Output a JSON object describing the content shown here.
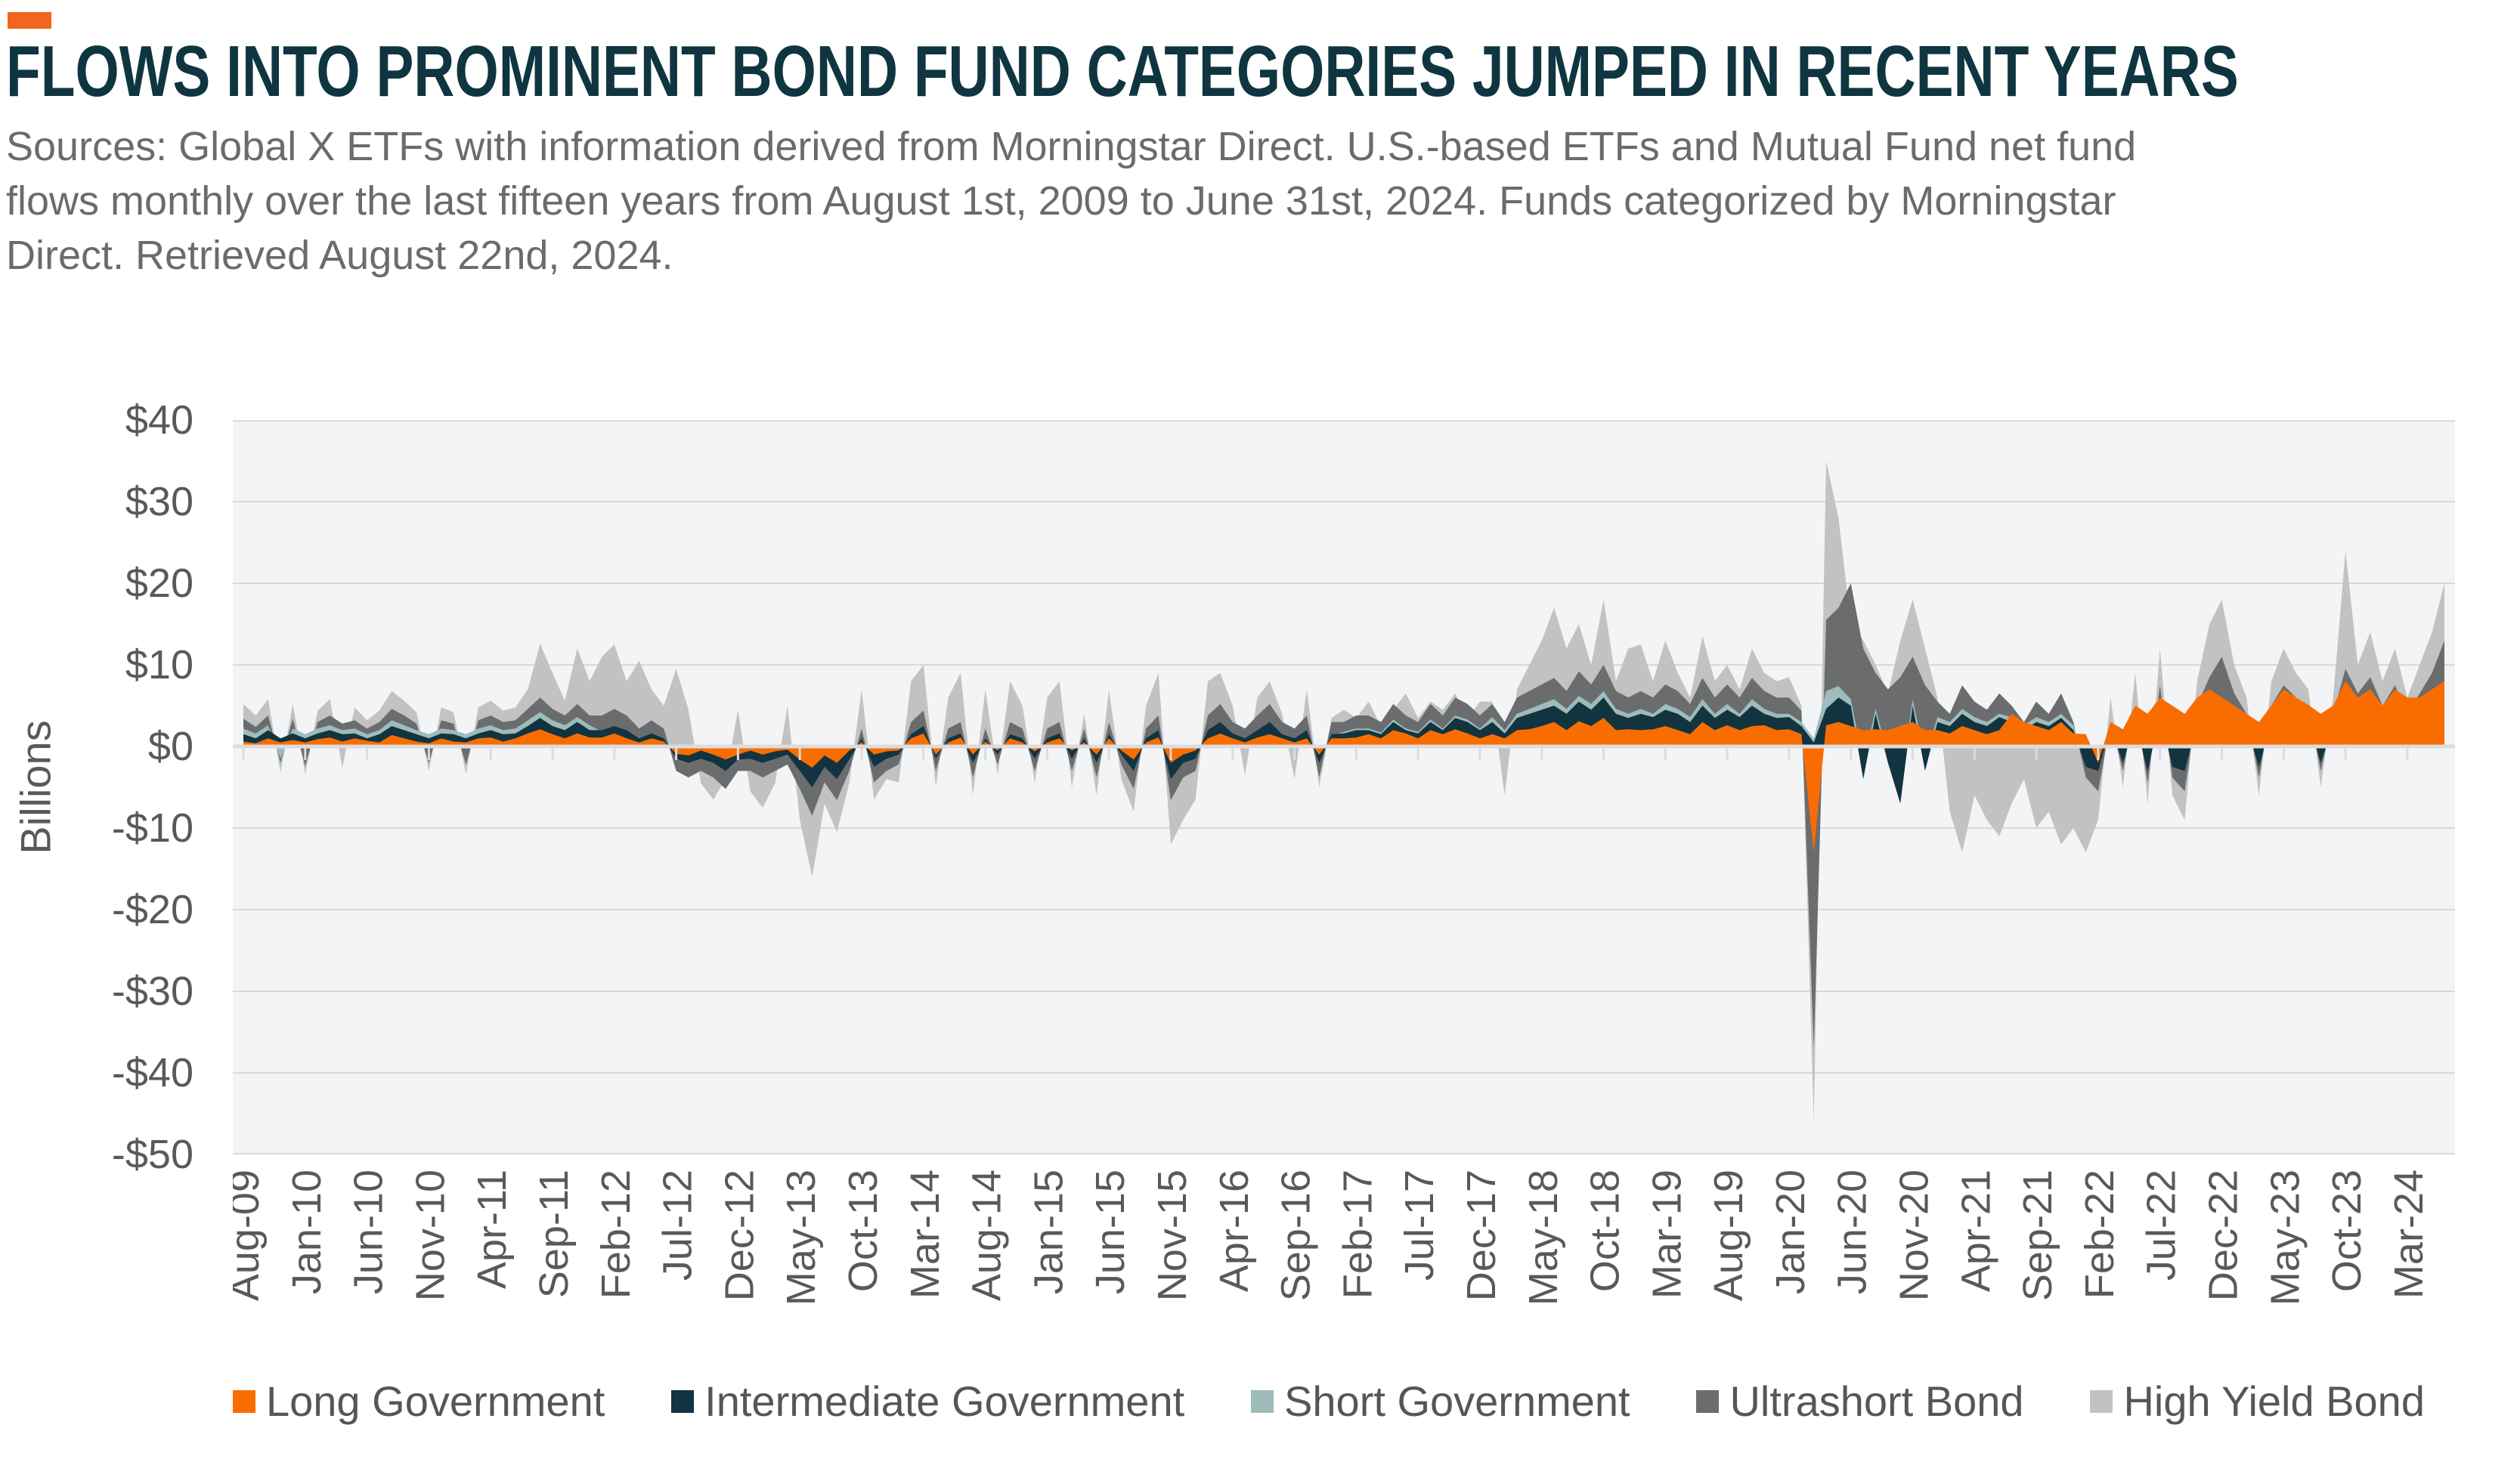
{
  "accent_color": "#F3641E",
  "header": {
    "title": "FLOWS INTO PROMINENT BOND FUND CATEGORIES JUMPED IN RECENT YEARS",
    "source_lines": [
      "Sources: Global X ETFs with information derived from Morningstar Direct. U.S.-based ETFs and Mutual Fund net fund",
      "flows monthly over the last fifteen years from August 1st, 2009 to June 31st, 2024. Funds categorized by Morningstar",
      "Direct. Retrieved August 22nd, 2024."
    ]
  },
  "chart_data": {
    "type": "area",
    "overlap": true,
    "title": "",
    "xlabel": "",
    "ylabel": "Billions",
    "ylim": [
      -50,
      40
    ],
    "y_tick_step": 10,
    "y_ticks": [
      "$40",
      "$30",
      "$20",
      "$10",
      "$0",
      "-$10",
      "-$20",
      "-$30",
      "-$40",
      "-$50"
    ],
    "grid": true,
    "legend_position": "bottom",
    "points": 179,
    "x_start": "Aug-2009",
    "x_end": "Jun-2024",
    "x_tick_every_months": 5,
    "x_tick_labels": [
      "Aug-09",
      "Jan-10",
      "Jun-10",
      "Nov-10",
      "Apr-11",
      "Sep-11",
      "Feb-12",
      "Jul-12",
      "Dec-12",
      "May-13",
      "Oct-13",
      "Mar-14",
      "Aug-14",
      "Jan-15",
      "Jun-15",
      "Nov-15",
      "Apr-16",
      "Sep-16",
      "Feb-17",
      "Jul-17",
      "Dec-17",
      "May-18",
      "Oct-18",
      "Mar-19",
      "Aug-19",
      "Jan-20",
      "Jun-20",
      "Nov-20",
      "Apr-21",
      "Sep-21",
      "Feb-22",
      "Jul-22",
      "Dec-22",
      "May-23",
      "Oct-23",
      "Mar-24"
    ],
    "plot_bg": "#F3F4F6",
    "grid_color": "#D8D8DA",
    "zero_line_color": "#DCDCDE",
    "axis_text_color": "#58595B",
    "series": [
      {
        "name": "Long Government",
        "color": "#F96D00",
        "values": [
          0.6,
          0.4,
          1.0,
          0.5,
          0.8,
          0.5,
          0.9,
          1.1,
          0.6,
          1.0,
          0.7,
          0.5,
          1.4,
          1.0,
          0.6,
          0.4,
          1.0,
          0.6,
          0.5,
          1.0,
          1.1,
          0.6,
          1.0,
          1.6,
          2.1,
          1.5,
          1.0,
          1.6,
          1.1,
          1.1,
          1.6,
          1.0,
          0.5,
          1.0,
          0.6,
          -0.9,
          -1.1,
          -0.5,
          -1.0,
          -1.6,
          -1.0,
          -0.5,
          -1.0,
          -0.6,
          -0.4,
          -1.6,
          -2.6,
          -1.1,
          -2.0,
          -0.5,
          0.5,
          -1.0,
          -0.6,
          -0.5,
          1.0,
          1.6,
          -1.0,
          0.5,
          1.1,
          -1.0,
          0.6,
          -0.5,
          1.0,
          0.5,
          -0.6,
          0.5,
          1.0,
          -0.5,
          0.5,
          -1.0,
          1.0,
          -0.5,
          -1.6,
          0.5,
          1.1,
          -2.0,
          -1.0,
          -0.5,
          1.0,
          1.6,
          1.0,
          0.5,
          1.1,
          1.5,
          1.0,
          0.5,
          1.0,
          -1.0,
          1.0,
          1.0,
          1.1,
          1.5,
          1.0,
          2.0,
          1.6,
          1.0,
          2.0,
          1.5,
          2.1,
          1.6,
          1.0,
          1.5,
          1.0,
          2.0,
          2.1,
          2.5,
          3.0,
          2.0,
          3.1,
          2.5,
          3.5,
          2.0,
          2.1,
          2.0,
          2.1,
          2.5,
          2.0,
          1.5,
          3.0,
          2.0,
          2.6,
          2.0,
          2.5,
          2.6,
          2.0,
          2.1,
          1.5,
          -13.0,
          2.6,
          3.0,
          2.5,
          2.0,
          2.1,
          2.0,
          2.5,
          3.0,
          2.0,
          2.0,
          1.6,
          2.5,
          2.0,
          1.5,
          2.0,
          4.0,
          3.0,
          2.5,
          2.0,
          3.0,
          1.6,
          1.5,
          -2.0,
          3.0,
          2.1,
          5.0,
          4.0,
          6.0,
          5.0,
          4.0,
          6.0,
          7.0,
          6.0,
          5.0,
          4.0,
          3.0,
          5.0,
          7.0,
          6.0,
          5.1,
          4.0,
          5.0,
          8.0,
          6.0,
          7.0,
          5.0,
          7.0,
          6.0,
          6.0,
          7.0,
          8.0
        ]
      },
      {
        "name": "Intermediate Government",
        "color": "#113440",
        "values": [
          1.5,
          1.0,
          2.0,
          1.0,
          1.6,
          1.0,
          1.6,
          2.0,
          1.5,
          1.6,
          1.0,
          1.5,
          2.5,
          2.0,
          1.5,
          1.0,
          1.6,
          1.5,
          1.0,
          1.6,
          2.0,
          1.5,
          1.6,
          2.5,
          3.5,
          2.5,
          2.0,
          3.0,
          2.0,
          2.0,
          2.5,
          2.0,
          1.0,
          1.6,
          1.0,
          -1.5,
          -2.0,
          -1.5,
          -2.0,
          -3.0,
          -1.6,
          -1.5,
          -2.0,
          -1.5,
          -1.0,
          -3.0,
          -5.0,
          -2.5,
          -4.0,
          -1.6,
          1.0,
          -2.5,
          -1.5,
          -1.0,
          1.5,
          2.5,
          -1.5,
          1.0,
          1.6,
          -2.0,
          1.0,
          -1.0,
          1.5,
          1.0,
          -1.5,
          1.0,
          1.6,
          -1.5,
          1.0,
          -2.0,
          1.5,
          -1.0,
          -3.0,
          1.0,
          2.0,
          -4.0,
          -2.0,
          -1.5,
          2.0,
          3.0,
          1.6,
          1.0,
          2.0,
          3.0,
          1.5,
          1.0,
          2.0,
          -2.0,
          1.5,
          1.6,
          2.0,
          2.0,
          1.5,
          3.0,
          2.0,
          1.6,
          3.0,
          2.0,
          3.5,
          3.0,
          2.0,
          3.0,
          1.6,
          3.5,
          4.0,
          4.5,
          5.0,
          4.0,
          5.5,
          4.5,
          6.0,
          4.0,
          3.5,
          4.0,
          3.6,
          4.5,
          4.0,
          3.0,
          5.0,
          3.5,
          4.5,
          3.6,
          5.0,
          4.0,
          3.5,
          3.6,
          2.5,
          0.5,
          4.6,
          6.0,
          5.0,
          -4.0,
          4.0,
          -2.0,
          -7.0,
          5.0,
          -3.0,
          3.0,
          2.5,
          4.0,
          3.0,
          2.5,
          3.6,
          3.0,
          2.0,
          3.0,
          2.5,
          3.5,
          2.0,
          -2.5,
          -3.0,
          2.5,
          -2.0,
          3.0,
          -3.0,
          4.0,
          -2.5,
          -3.0,
          3.0,
          4.5,
          5.0,
          3.5,
          2.6,
          -2.5,
          3.0,
          4.0,
          3.5,
          3.0,
          -2.0,
          2.5,
          5.0,
          3.5,
          4.5,
          3.0,
          4.0,
          2.5,
          3.6,
          4.5,
          7.0
        ]
      },
      {
        "name": "Short Government",
        "color": "#9DBCBA",
        "values": [
          2.2,
          1.6,
          2.6,
          -1.5,
          2.2,
          1.5,
          2.2,
          2.6,
          2.0,
          2.2,
          1.5,
          2.0,
          3.2,
          2.6,
          2.0,
          1.5,
          2.2,
          2.0,
          1.5,
          2.2,
          2.6,
          2.0,
          2.2,
          3.2,
          4.2,
          3.2,
          2.6,
          3.6,
          2.6,
          1.8,
          2.2,
          1.8,
          0.9,
          1.4,
          0.9,
          -1.3,
          -1.8,
          -1.3,
          -1.8,
          -2.7,
          -1.4,
          -1.3,
          -1.8,
          -1.3,
          -0.9,
          -2.7,
          -4.5,
          -2.2,
          -3.6,
          -1.4,
          0.9,
          -2.2,
          -1.3,
          -0.9,
          1.3,
          2.2,
          -1.3,
          0.9,
          1.4,
          -1.8,
          0.9,
          -0.9,
          1.3,
          0.9,
          -1.3,
          0.9,
          1.4,
          -1.3,
          0.9,
          -1.8,
          1.3,
          -0.9,
          -2.7,
          0.9,
          1.8,
          -3.6,
          -1.8,
          -1.3,
          1.8,
          2.7,
          1.4,
          0.9,
          1.8,
          2.7,
          1.3,
          0.9,
          1.8,
          -1.8,
          1.3,
          1.8,
          2.2,
          2.2,
          1.7,
          3.3,
          2.2,
          1.8,
          3.3,
          2.2,
          3.8,
          3.3,
          2.2,
          3.6,
          2.0,
          4.0,
          4.6,
          5.2,
          5.8,
          4.6,
          6.2,
          5.2,
          6.8,
          4.6,
          4.0,
          4.6,
          4.0,
          5.2,
          4.6,
          3.6,
          5.8,
          4.0,
          5.2,
          4.0,
          5.8,
          4.6,
          4.0,
          4.0,
          3.0,
          1.0,
          6.8,
          7.4,
          5.8,
          -2.0,
          4.6,
          -1.0,
          -5.0,
          5.8,
          -1.5,
          3.6,
          3.0,
          4.6,
          3.6,
          3.0,
          4.0,
          3.6,
          2.6,
          3.6,
          3.0,
          4.0,
          2.6,
          -1.8,
          -2.2,
          3.0,
          -1.5,
          3.6,
          -2.2,
          4.6,
          -1.8,
          -2.2,
          3.6,
          5.2,
          5.8,
          4.0,
          3.0,
          -1.8,
          3.6,
          4.6,
          4.0,
          3.6,
          -1.5,
          3.0,
          5.8,
          4.0,
          5.2,
          3.6,
          4.6,
          3.0,
          4.2,
          5.2,
          8.0
        ]
      },
      {
        "name": "Ultrashort Bond",
        "color": "#6B6C6E",
        "values": [
          3.4,
          2.4,
          3.8,
          -2.0,
          3.4,
          -2.4,
          3.0,
          3.8,
          2.8,
          3.2,
          2.2,
          3.0,
          4.6,
          3.8,
          2.8,
          -2.0,
          3.2,
          2.8,
          -2.2,
          3.2,
          3.8,
          3.0,
          3.2,
          4.6,
          6.0,
          4.6,
          3.8,
          5.2,
          3.8,
          3.8,
          4.6,
          3.8,
          2.2,
          3.2,
          2.2,
          -3.0,
          -3.8,
          -3.0,
          -3.8,
          -5.2,
          -3.0,
          -3.0,
          -3.8,
          -3.0,
          -2.2,
          -5.2,
          -8.5,
          -4.4,
          -6.6,
          -3.0,
          2.2,
          -4.4,
          -3.0,
          -2.2,
          3.0,
          4.4,
          -3.0,
          2.2,
          3.0,
          -3.8,
          2.2,
          -2.2,
          3.0,
          2.2,
          -3.0,
          2.2,
          3.0,
          -3.0,
          2.2,
          -3.8,
          3.0,
          -2.2,
          -5.2,
          2.2,
          3.8,
          -6.6,
          -3.8,
          -3.0,
          3.8,
          5.2,
          3.0,
          2.2,
          3.8,
          5.2,
          3.0,
          2.2,
          3.8,
          -3.8,
          3.0,
          3.0,
          3.8,
          3.8,
          3.0,
          5.2,
          3.8,
          3.0,
          5.2,
          3.8,
          6.0,
          5.2,
          3.8,
          5.2,
          3.0,
          6.0,
          6.8,
          7.6,
          8.4,
          6.8,
          9.2,
          7.6,
          10.0,
          6.8,
          6.0,
          6.8,
          6.0,
          7.6,
          6.8,
          5.2,
          8.4,
          6.0,
          7.6,
          6.0,
          8.4,
          6.8,
          6.0,
          6.0,
          4.4,
          -37.0,
          15.5,
          17.0,
          20.0,
          12.0,
          9.0,
          7.0,
          8.5,
          11.0,
          7.5,
          5.5,
          4.0,
          7.5,
          5.5,
          4.5,
          6.5,
          5.0,
          3.0,
          5.5,
          4.0,
          6.5,
          3.0,
          -3.8,
          -5.5,
          3.0,
          -3.0,
          5.0,
          -4.5,
          7.5,
          -3.8,
          -5.5,
          5.0,
          8.5,
          11.0,
          6.5,
          4.0,
          -3.8,
          5.0,
          7.5,
          6.0,
          5.0,
          -3.0,
          4.0,
          9.5,
          6.5,
          8.5,
          5.0,
          7.5,
          4.0,
          6.5,
          9.0,
          13.0
        ]
      },
      {
        "name": "High Yield Bond",
        "color": "#C2C2C2",
        "values": [
          5.2,
          3.8,
          5.8,
          -3.2,
          5.2,
          -3.4,
          4.4,
          5.8,
          -2.6,
          4.8,
          3.2,
          4.4,
          6.8,
          5.6,
          4.2,
          -3.0,
          4.8,
          4.2,
          -3.4,
          4.8,
          5.6,
          4.4,
          4.8,
          7.0,
          12.6,
          9.0,
          5.6,
          12.0,
          8.0,
          11.0,
          12.5,
          8.0,
          10.5,
          7.0,
          5.0,
          9.5,
          4.5,
          -4.5,
          -6.5,
          -4.0,
          4.5,
          -5.5,
          -7.5,
          -4.5,
          5.0,
          -9.0,
          -16.0,
          -7.0,
          -10.5,
          -4.5,
          7.0,
          -6.5,
          -4.0,
          -4.4,
          8.0,
          10.0,
          -5.0,
          6.0,
          9.0,
          -6.0,
          7.0,
          -3.5,
          8.0,
          5.0,
          -4.5,
          6.0,
          8.0,
          -5.0,
          4.0,
          -6.0,
          7.0,
          -4.0,
          -8.0,
          5.0,
          9.0,
          -12.0,
          -9.0,
          -6.5,
          8.0,
          9.0,
          5.0,
          -3.5,
          6.0,
          8.0,
          4.0,
          -4.0,
          7.0,
          -5.0,
          3.5,
          4.5,
          3.5,
          5.5,
          2.5,
          4.5,
          6.5,
          3.5,
          5.5,
          4.5,
          6.5,
          3.5,
          5.5,
          5.5,
          -6.0,
          7.0,
          10.0,
          13.0,
          17.0,
          12.0,
          15.0,
          10.0,
          18.0,
          8.0,
          12.0,
          12.5,
          8.0,
          13.0,
          9.0,
          6.0,
          13.5,
          8.0,
          10.0,
          7.0,
          12.0,
          9.0,
          8.0,
          8.5,
          5.0,
          -46.0,
          35.0,
          28.0,
          15.0,
          13.0,
          10.0,
          6.5,
          13.0,
          18.0,
          12.0,
          6.0,
          -8.0,
          -13.0,
          -6.0,
          -9.0,
          -11.0,
          -7.0,
          -4.0,
          -10.0,
          -8.0,
          -12.0,
          -10.0,
          -13.0,
          -9.0,
          6.0,
          -5.0,
          9.0,
          -7.0,
          12.0,
          -6.0,
          -9.0,
          8.0,
          15.0,
          18.0,
          10.0,
          6.0,
          -6.0,
          8.0,
          12.0,
          9.0,
          7.0,
          -5.0,
          6.0,
          24.0,
          10.0,
          14.0,
          8.0,
          12.0,
          6.0,
          10.0,
          14.0,
          20.0
        ]
      }
    ]
  }
}
